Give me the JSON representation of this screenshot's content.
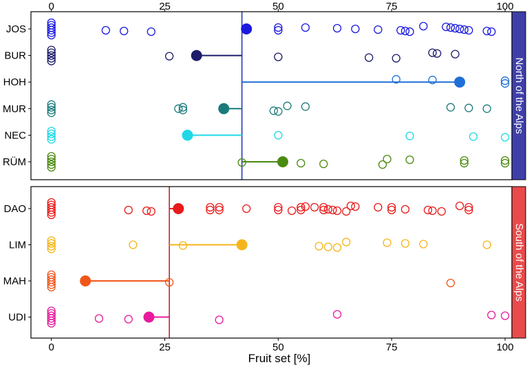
{
  "chart_data": {
    "type": "scatter",
    "xlabel": "Fruit set [%]",
    "xlim": [
      -4.5,
      101.5
    ],
    "xticks": [
      0,
      25,
      50,
      75,
      100
    ],
    "xtick_labels": [
      "0",
      "25",
      "50",
      "75",
      "100"
    ],
    "panels": [
      {
        "strip_label": "North of the Alps",
        "strip_color": "#3f3fa8",
        "reference_value": 42,
        "reference_color": "#1a2fb5",
        "populations": [
          {
            "name": "JOS",
            "color": "#1a1adf",
            "mean": 43,
            "values": [
              0,
              0,
              0,
              0,
              0,
              0,
              12,
              16,
              22,
              50,
              50,
              56,
              63,
              67,
              72,
              77,
              78,
              79,
              82,
              87,
              88,
              89,
              90,
              91,
              92,
              96,
              97
            ]
          },
          {
            "name": "BUR",
            "color": "#1c1c6b",
            "mean": 32,
            "values": [
              0,
              0,
              0,
              0,
              0,
              26,
              50,
              70,
              76,
              84,
              85,
              89
            ]
          },
          {
            "name": "HOH",
            "color": "#1f6fd6",
            "mean": 90,
            "values": [
              76,
              84,
              100,
              100
            ]
          },
          {
            "name": "MUR",
            "color": "#1a7a7a",
            "mean": 38,
            "values": [
              0,
              0,
              0,
              0,
              28,
              29,
              29,
              49,
              50,
              52,
              56,
              88,
              92,
              96
            ]
          },
          {
            "name": "NEC",
            "color": "#1fd8e8",
            "mean": 30,
            "values": [
              0,
              0,
              0,
              0,
              50,
              79,
              93,
              100
            ]
          },
          {
            "name": "RÜM",
            "color": "#4a8a10",
            "mean": 51,
            "values": [
              0,
              0,
              0,
              0,
              0,
              42,
              55,
              60,
              73,
              74,
              79,
              91,
              91,
              100,
              100
            ]
          }
        ]
      },
      {
        "strip_label": "South of the Alps",
        "strip_color": "#e84b4b",
        "reference_value": 26,
        "reference_color": "#b51a1a",
        "populations": [
          {
            "name": "DAO",
            "color": "#e81a1a",
            "mean": 28,
            "values": [
              0,
              0,
              0,
              0,
              0,
              0,
              17,
              21,
              22,
              35,
              35,
              37,
              37,
              43,
              50,
              50,
              53,
              55,
              55,
              56,
              58,
              60,
              60,
              61,
              62,
              63,
              65,
              66,
              67,
              72,
              75,
              75,
              78,
              83,
              84,
              86,
              90,
              92,
              92
            ]
          },
          {
            "name": "LIM",
            "color": "#f5b51a",
            "mean": 42,
            "values": [
              0,
              0,
              0,
              0,
              18,
              29,
              59,
              61,
              63,
              65,
              74,
              78,
              82,
              96
            ]
          },
          {
            "name": "MAH",
            "color": "#f0561a",
            "mean": 7.5,
            "values": [
              0,
              0,
              0,
              0,
              0,
              0,
              26,
              88
            ]
          },
          {
            "name": "UDI",
            "color": "#e81a9e",
            "mean": 21.5,
            "values": [
              0,
              0,
              0,
              0,
              0,
              0,
              10.5,
              17,
              37,
              63,
              97,
              100
            ]
          }
        ]
      }
    ]
  }
}
